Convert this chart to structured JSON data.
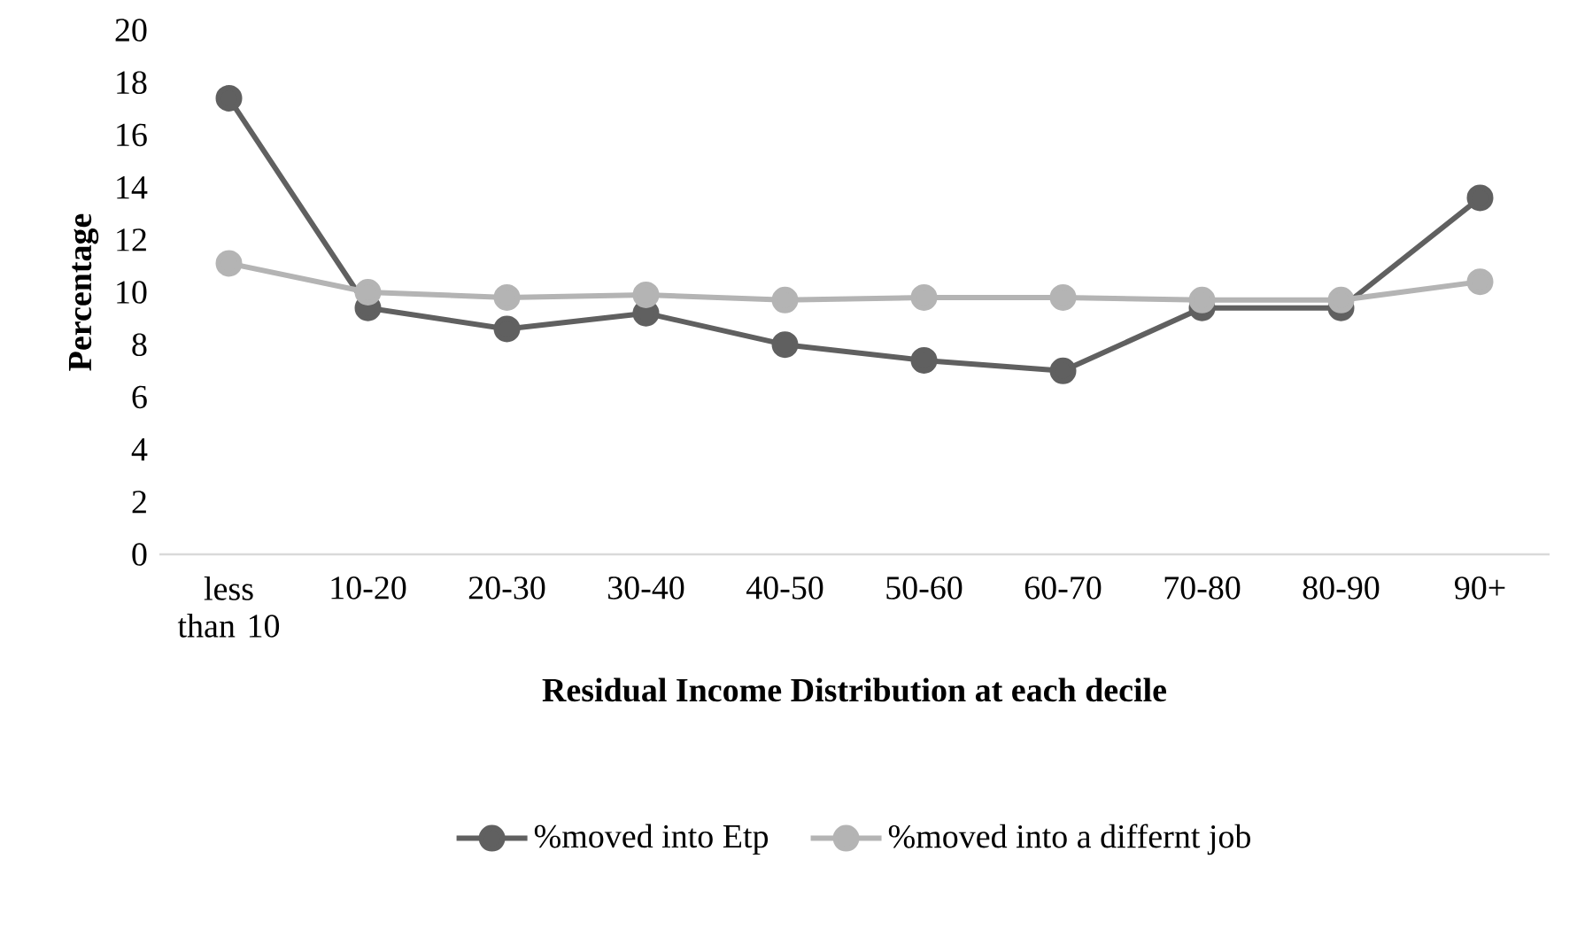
{
  "chart_data": {
    "type": "line",
    "xlabel": "Residual Income Distribution at each decile",
    "ylabel": "Percentage",
    "categories": [
      "less than 10",
      "10-20",
      "20-30",
      "30-40",
      "40-50",
      "50-60",
      "60-70",
      "70-80",
      "80-90",
      "90+"
    ],
    "series": [
      {
        "name": "%moved into Etp",
        "color": "#606060",
        "values": [
          17.4,
          9.4,
          8.6,
          9.2,
          8.0,
          7.4,
          7.0,
          9.4,
          9.4,
          13.6
        ]
      },
      {
        "name": "%moved into a differnt job",
        "color": "#b4b4b4",
        "values": [
          11.1,
          10.0,
          9.8,
          9.9,
          9.7,
          9.8,
          9.8,
          9.7,
          9.7,
          10.4
        ]
      }
    ],
    "ylim": [
      0,
      20
    ],
    "yticks": [
      0,
      2,
      4,
      6,
      8,
      10,
      12,
      14,
      16,
      18,
      20
    ],
    "grid": false,
    "legend": "bottom",
    "marker": "circle",
    "line_style": "solid"
  }
}
